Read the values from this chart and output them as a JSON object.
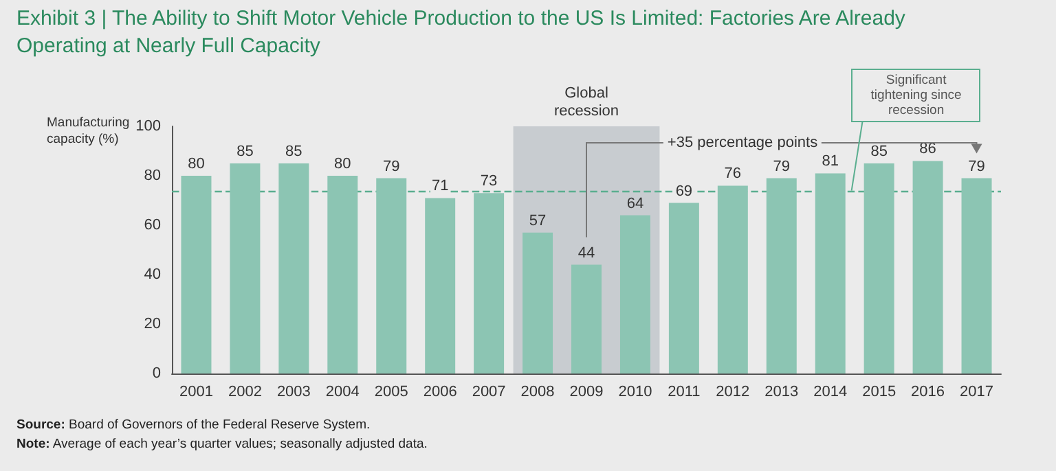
{
  "chart_data": {
    "type": "bar",
    "title": "Exhibit 3 | The Ability to Shift Motor Vehicle Production to the US Is Limited: Factories Are Already Operating at Nearly Full Capacity",
    "ylabel": "Manufacturing capacity (%)",
    "categories": [
      "2001",
      "2002",
      "2003",
      "2004",
      "2005",
      "2006",
      "2007",
      "2008",
      "2009",
      "2010",
      "2011",
      "2012",
      "2013",
      "2014",
      "2015",
      "2016",
      "2017"
    ],
    "values": [
      80,
      85,
      85,
      80,
      79,
      71,
      73,
      57,
      44,
      64,
      69,
      76,
      79,
      81,
      85,
      86,
      79
    ],
    "color": "#8cc5b3",
    "ylim": [
      0,
      100
    ],
    "yticks": [
      0,
      20,
      40,
      60,
      80,
      100
    ],
    "data_labels": true,
    "grid": false,
    "ref_lines": [
      {
        "axis": "y",
        "value": 74,
        "label": "Significant tightening since recession",
        "color": "#5aae8f",
        "line_style": "dashed"
      }
    ],
    "bands": [
      {
        "axis": "x",
        "from": "2008",
        "to": "2010",
        "label": "Global recession",
        "color": "#c8ccd0"
      }
    ],
    "annotations": [
      "+35 percentage points",
      "Source: Board of Governors of the Federal Reserve System.",
      "Note: Average of each year’s quarter values; seasonally adjusted data."
    ]
  }
}
